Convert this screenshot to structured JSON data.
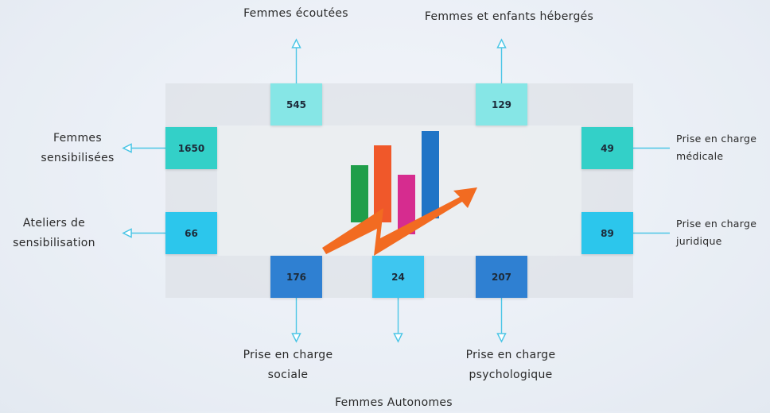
{
  "items": [
    {
      "label": "Femmes écoutées",
      "value": 545
    },
    {
      "label": "Femmes et enfants hébergés",
      "value": 129
    },
    {
      "label": "Femmes sensibilisées",
      "value": 1650
    },
    {
      "label": "Ateliers de sensibilisation",
      "value": 66
    },
    {
      "label": "Prise en charge médicale",
      "value": 49
    },
    {
      "label": "Prise en charge juridique",
      "value": 89
    },
    {
      "label": "Prise en charge sociale",
      "value": 176
    },
    {
      "label": "Femmes Autonomes",
      "value": 24
    },
    {
      "label": "Prise en charge psychologique",
      "value": 207
    }
  ]
}
